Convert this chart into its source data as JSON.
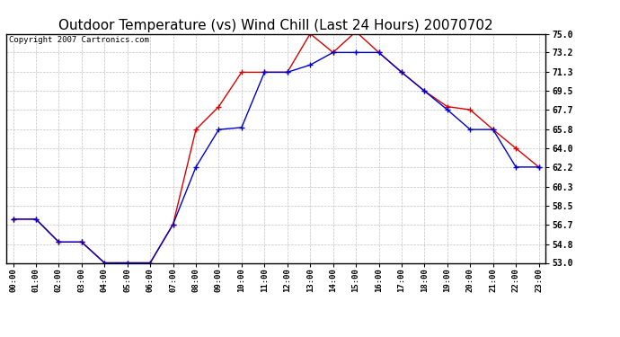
{
  "title": "Outdoor Temperature (vs) Wind Chill (Last 24 Hours) 20070702",
  "copyright": "Copyright 2007 Cartronics.com",
  "hours": [
    "00:00",
    "01:00",
    "02:00",
    "03:00",
    "04:00",
    "05:00",
    "06:00",
    "07:00",
    "08:00",
    "09:00",
    "10:00",
    "11:00",
    "12:00",
    "13:00",
    "14:00",
    "15:00",
    "16:00",
    "17:00",
    "18:00",
    "19:00",
    "20:00",
    "21:00",
    "22:00",
    "23:00"
  ],
  "temp": [
    57.2,
    57.2,
    55.0,
    55.0,
    53.0,
    53.0,
    53.0,
    56.7,
    65.8,
    68.0,
    71.3,
    71.3,
    71.3,
    75.0,
    73.2,
    75.2,
    73.2,
    71.3,
    69.5,
    68.0,
    67.7,
    65.8,
    64.0,
    62.2
  ],
  "windchill": [
    57.2,
    57.2,
    55.0,
    55.0,
    53.0,
    53.0,
    53.0,
    56.7,
    62.2,
    65.8,
    66.0,
    71.3,
    71.3,
    72.0,
    73.2,
    73.2,
    73.2,
    71.3,
    69.5,
    67.7,
    65.8,
    65.8,
    62.2,
    62.2
  ],
  "temp_color": "#dd0000",
  "windchill_color": "#0000cc",
  "ylim": [
    53.0,
    75.0
  ],
  "yticks": [
    53.0,
    54.8,
    56.7,
    58.5,
    60.3,
    62.2,
    64.0,
    65.8,
    67.7,
    69.5,
    71.3,
    73.2,
    75.0
  ],
  "bg_color": "#ffffff",
  "grid_color": "#bbbbbb",
  "title_fontsize": 11,
  "copyright_fontsize": 6.5
}
